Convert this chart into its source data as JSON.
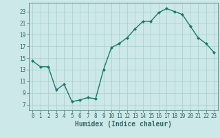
{
  "xlabel": "Humidex (Indice chaleur)",
  "x_values": [
    0,
    1,
    2,
    3,
    4,
    5,
    6,
    7,
    8,
    9,
    10,
    11,
    12,
    13,
    14,
    15,
    16,
    17,
    18,
    19,
    20,
    21,
    22,
    23
  ],
  "y_values": [
    14.5,
    13.5,
    13.5,
    9.5,
    10.5,
    7.5,
    7.8,
    8.2,
    8.0,
    13.0,
    16.8,
    17.5,
    18.5,
    20.0,
    21.3,
    21.3,
    22.8,
    23.5,
    23.0,
    22.5,
    20.5,
    18.5,
    17.5,
    16.0
  ],
  "ylim": [
    6,
    24.5
  ],
  "xlim": [
    -0.5,
    23.5
  ],
  "yticks": [
    7,
    9,
    11,
    13,
    15,
    17,
    19,
    21,
    23
  ],
  "xticks": [
    0,
    1,
    2,
    3,
    4,
    5,
    6,
    7,
    8,
    9,
    10,
    11,
    12,
    13,
    14,
    15,
    16,
    17,
    18,
    19,
    20,
    21,
    22,
    23
  ],
  "line_color": "#1a7a6a",
  "marker_color": "#1a7a6a",
  "bg_color": "#cce8e8",
  "grid_color": "#aacece",
  "axis_color": "#336666",
  "tick_label_fontsize": 5.5,
  "xlabel_fontsize": 7
}
